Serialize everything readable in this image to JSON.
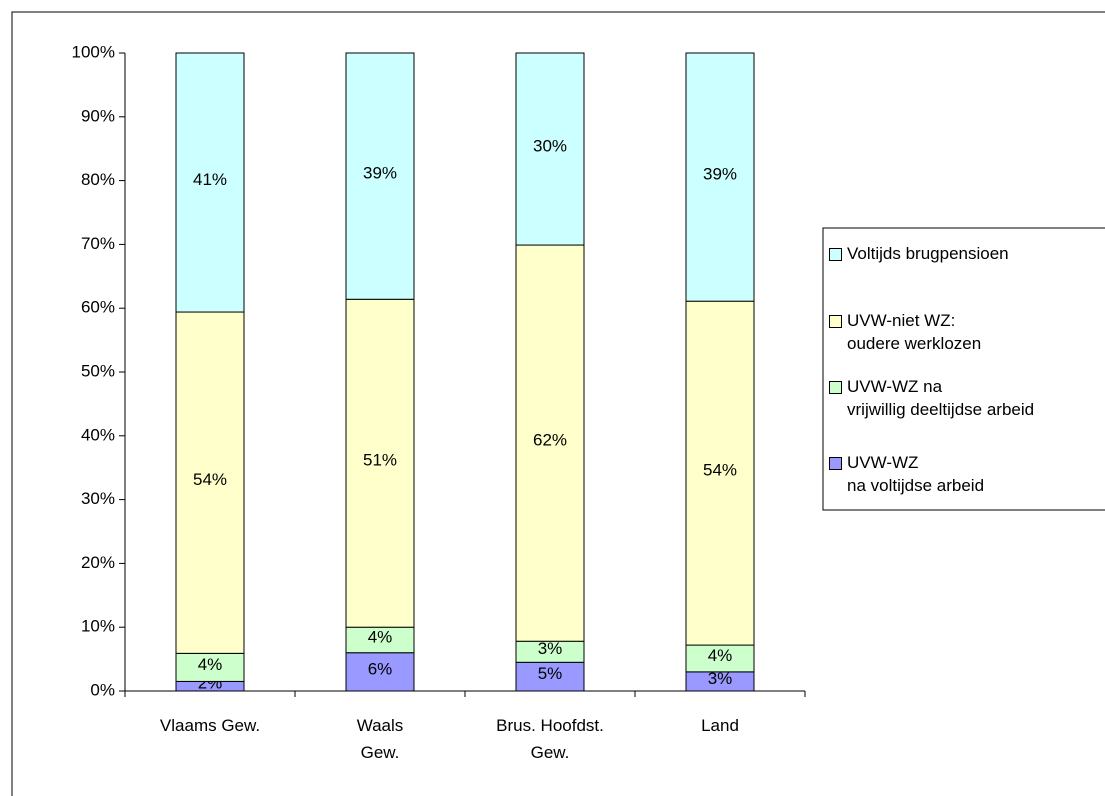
{
  "chart_data": {
    "type": "stacked_bar",
    "categories": [
      "Vlaams Gew.",
      "Waals\nGew.",
      "Brus. Hoofdst.\nGew.",
      "Land"
    ],
    "series": [
      {
        "name": "UVW-WZ\nna voltijdse arbeid",
        "color": "#9999ff",
        "values": [
          1.5,
          6.0,
          4.5,
          3.0
        ],
        "value_labels": [
          "2%",
          "6%",
          "5%",
          "3%"
        ]
      },
      {
        "name": "UVW-WZ na\nvrijwillig deeltijdse arbeid",
        "color": "#ccffcc",
        "values": [
          4.4,
          4.0,
          3.3,
          4.2
        ],
        "value_labels": [
          "4%",
          "4%",
          "3%",
          "4%"
        ]
      },
      {
        "name": "UVW-niet WZ:\noudere werklozen",
        "color": "#ffffcc",
        "values": [
          53.5,
          51.4,
          62.1,
          53.9
        ],
        "value_labels": [
          "54%",
          "51%",
          "62%",
          "54%"
        ]
      },
      {
        "name": "Voltijds brugpensioen",
        "color": "#ccffff",
        "values": [
          40.6,
          38.6,
          30.1,
          38.9
        ],
        "value_labels": [
          "41%",
          "39%",
          "30%",
          "39%"
        ]
      }
    ],
    "ylim": [
      0,
      100
    ],
    "yticks": [
      {
        "value": 0,
        "label": "0%"
      },
      {
        "value": 10,
        "label": "10%"
      },
      {
        "value": 20,
        "label": "20%"
      },
      {
        "value": 30,
        "label": "30%"
      },
      {
        "value": 40,
        "label": "40%"
      },
      {
        "value": 50,
        "label": "50%"
      },
      {
        "value": 60,
        "label": "60%"
      },
      {
        "value": 70,
        "label": "70%"
      },
      {
        "value": 80,
        "label": "80%"
      },
      {
        "value": 90,
        "label": "90%"
      },
      {
        "value": 100,
        "label": "100%"
      }
    ],
    "legend": "right",
    "grid": false
  }
}
